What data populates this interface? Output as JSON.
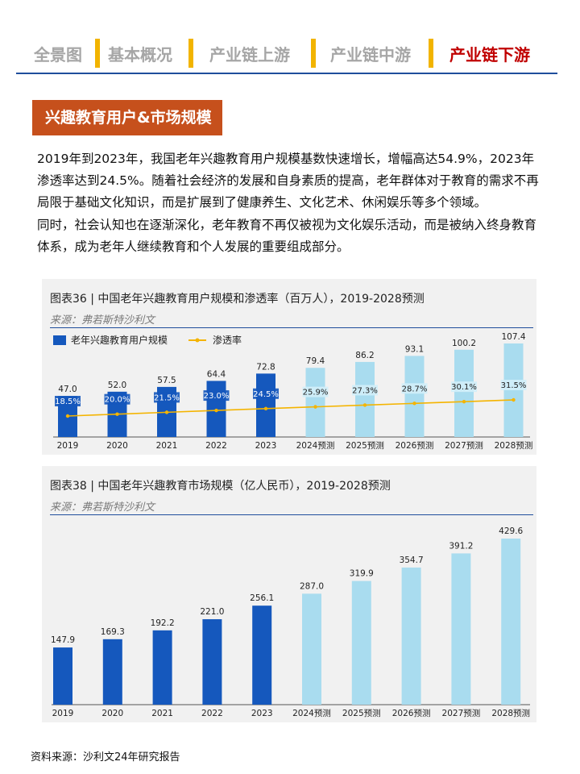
{
  "nav": {
    "items": [
      {
        "label": "全景图",
        "active": false
      },
      {
        "label": "基本概况",
        "active": false
      },
      {
        "label": "产业链上游",
        "active": false
      },
      {
        "label": "产业链中游",
        "active": false
      },
      {
        "label": "产业链下游",
        "active": true
      }
    ],
    "accent": "#c00000",
    "separator_color": "#f2b400"
  },
  "section": {
    "title": "兴趣教育用户&市场规模"
  },
  "paragraphs": [
    "2019年到2023年，我国老年兴趣教育用户规模基数快速增长，增幅高达54.9%，2023年渗透率达到24.5%。随着社会经济的发展和自身素质的提高，老年群体对于教育的需求不再局限于基础文化知识，而是扩展到了健康养生、文化艺术、休闲娱乐等多个领域。",
    "同时，社会认知也在逐渐深化，老年教育不再仅被视为文化娱乐活动，而是被纳入终身教育体系，成为老年人继续教育和个人发展的重要组成部分。"
  ],
  "chart_panels": [
    {
      "title": "图表36 | 中国老年兴趣教育用户规模和渗透率（百万人），2019-2028预测",
      "source": "来源：弗若斯特沙利文"
    },
    {
      "title": "图表38 | 中国老年兴趣教育市场规模（亿人民币），2019-2028预测",
      "source": "来源：弗若斯特沙利文"
    }
  ],
  "chart_data": [
    {
      "type": "bar",
      "categories": [
        "2019",
        "2020",
        "2021",
        "2022",
        "2023",
        "2024预测",
        "2025预测",
        "2026预测",
        "2027预测",
        "2028预测"
      ],
      "series": [
        {
          "name": "老年兴趣教育用户规模",
          "values": [
            47.0,
            52.0,
            57.5,
            64.4,
            72.8,
            79.4,
            86.2,
            93.1,
            100.2,
            107.4
          ],
          "value_labels": [
            "47.0",
            "52.0",
            "57.5",
            "64.4",
            "72.8",
            "79.4",
            "86.2",
            "93.1",
            "100.2",
            "107.4"
          ],
          "type": "bar"
        },
        {
          "name": "渗透率",
          "values": [
            18.5,
            20.0,
            21.5,
            23.0,
            24.5,
            25.9,
            27.3,
            28.7,
            30.1,
            31.5
          ],
          "value_labels": [
            "18.5%",
            "20.0%",
            "21.5%",
            "23.0%",
            "24.5%",
            "25.9%",
            "27.3%",
            "28.7%",
            "30.1%",
            "31.5%"
          ],
          "type": "line"
        }
      ],
      "forecast_from_index": 5,
      "colors": {
        "actual": "#1558bd",
        "forecast": "#a9dcef",
        "line": "#f4b400"
      },
      "legend_position": "top-left",
      "grid": false
    },
    {
      "type": "bar",
      "categories": [
        "2019",
        "2020",
        "2021",
        "2022",
        "2023",
        "2024预测",
        "2025预测",
        "2026预测",
        "2027预测",
        "2028预测"
      ],
      "values": [
        147.9,
        169.3,
        192.2,
        221.0,
        256.1,
        287.0,
        319.9,
        354.7,
        391.2,
        429.6
      ],
      "value_labels": [
        "147.9",
        "169.3",
        "192.2",
        "221.0",
        "256.1",
        "287.0",
        "319.9",
        "354.7",
        "391.2",
        "429.6"
      ],
      "forecast_from_index": 5,
      "colors": {
        "actual": "#1558bd",
        "forecast": "#a9dcef"
      },
      "grid": false
    }
  ],
  "footer": {
    "text": "资料来源：沙利文24年研究报告"
  }
}
